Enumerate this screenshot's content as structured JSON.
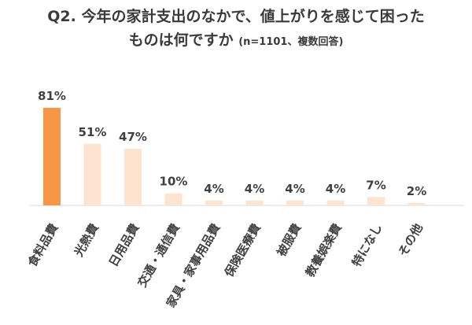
{
  "chart_data": {
    "type": "bar",
    "title_line1": "Q2. 今年の家計支出のなかで、値上がりを感じて困った",
    "title_line2": "ものは何ですか",
    "title_note": "(n=1101、複数回答)",
    "categories": [
      "食料品費",
      "光熱費",
      "日用品費",
      "交通・通信費",
      "家具・家事用品費",
      "保険医療費",
      "被服費",
      "教養娯楽費",
      "特になし",
      "その他"
    ],
    "values": [
      81,
      51,
      47,
      10,
      4,
      4,
      4,
      4,
      7,
      2
    ],
    "value_labels": [
      "81%",
      "51%",
      "47%",
      "10%",
      "4%",
      "4%",
      "4%",
      "4%",
      "7%",
      "2%"
    ],
    "ylim": [
      0,
      100
    ],
    "grid": false,
    "colors": {
      "highlight": "#F79646",
      "default": "#FCE4D0",
      "axis": "#D9D9D9"
    },
    "highlight_index": 0
  }
}
